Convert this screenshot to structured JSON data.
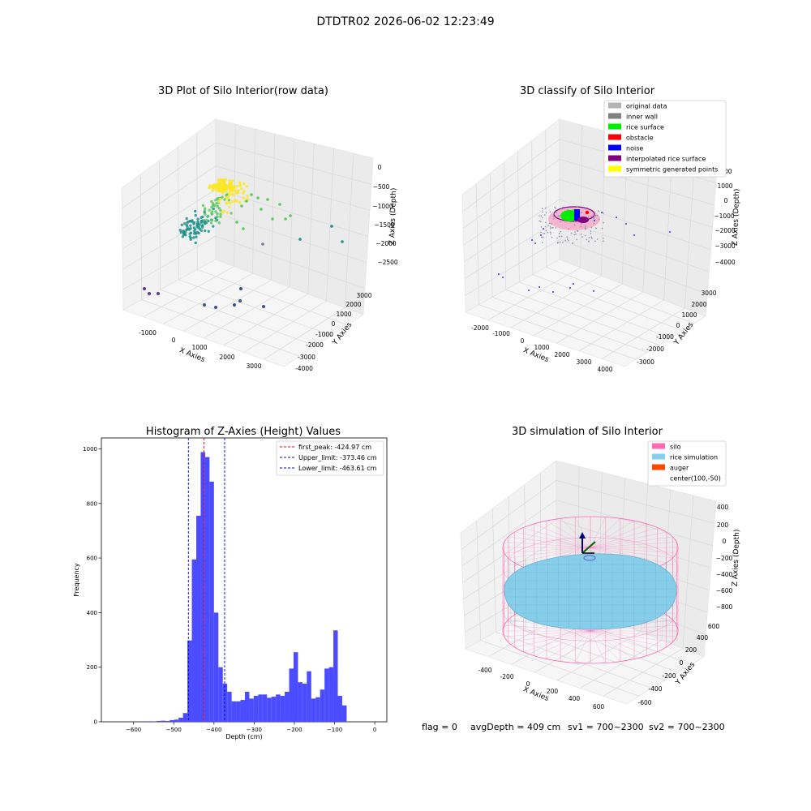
{
  "page_title": "DTDTR02 2026-06-02 12:23:49",
  "footer": {
    "flag": "flag = 0",
    "avg_depth": "avgDepth = 409 cm",
    "sv1": "sv1 = 700~2300",
    "sv2": "sv2 = 700~2300"
  },
  "chart_data": [
    {
      "id": "raw",
      "type": "scatter",
      "title": "3D Plot of Silo Interior(row data)",
      "xlabel": "X Axies",
      "ylabel": "Y Axies",
      "zlabel": "Z Axies (Depth)",
      "xlim": [
        -1600,
        3500
      ],
      "ylim": [
        -4200,
        3200
      ],
      "zlim": [
        -2900,
        100
      ],
      "x_ticks": [
        "-1000",
        "0",
        "1000",
        "2000",
        "3000"
      ],
      "y_ticks": [
        "-4000",
        "-3000",
        "-2000",
        "-1000",
        "0",
        "1000",
        "2000",
        "3000"
      ],
      "z_ticks": [
        "0",
        "−500",
        "−1000",
        "−1500",
        "−2000",
        "−2500"
      ],
      "colormap": [
        "#440154",
        "#3b528b",
        "#21918c",
        "#5ec962",
        "#fde725"
      ],
      "points_sampled": [
        {
          "x": -1250,
          "y": 2100,
          "z": -2800
        },
        {
          "x": -1150,
          "y": 2000,
          "z": -2800
        },
        {
          "x": -1000,
          "y": 2000,
          "z": -2800
        },
        {
          "x": 1500,
          "y": 2100,
          "z": -2750
        },
        {
          "x": 1800,
          "y": 1900,
          "z": -2750
        },
        {
          "x": 2250,
          "y": 1500,
          "z": -2700
        },
        {
          "x": 2250,
          "y": 1100,
          "z": -2600
        },
        {
          "x": 2900,
          "y": 700,
          "z": -2750
        },
        {
          "x": 3000,
          "y": -2200,
          "z": -1800
        },
        {
          "x": 3000,
          "y": -3500,
          "z": -2000
        },
        {
          "x": 2600,
          "y": -3000,
          "z": -2500
        },
        {
          "x": 2100,
          "y": -800,
          "z": -2100
        }
      ]
    },
    {
      "id": "classify",
      "type": "scatter",
      "title": "3D classify of Silo Interior",
      "xlabel": "X Axies",
      "ylabel": "Y Axies",
      "zlabel": "Z Axies (Depth)",
      "xlim": [
        -2400,
        4500
      ],
      "ylim": [
        -3500,
        3500
      ],
      "zlim": [
        -4500,
        2200
      ],
      "x_ticks": [
        "-2000",
        "-1000",
        "0",
        "1000",
        "2000",
        "3000",
        "4000"
      ],
      "y_ticks": [
        "-3000",
        "-2000",
        "-1000",
        "0",
        "1000",
        "2000",
        "3000"
      ],
      "z_ticks": [
        "2000",
        "1000",
        "0",
        "−1000",
        "−2000",
        "−3000",
        "−4000"
      ],
      "legend_position": "upper-right",
      "legend": [
        {
          "label": "original data",
          "color": "#b3b3b3"
        },
        {
          "label": "inner wall",
          "color": "#808080"
        },
        {
          "label": "rice surface",
          "color": "#00ee00"
        },
        {
          "label": "obstacle",
          "color": "#ff0000"
        },
        {
          "label": "noise",
          "color": "#0000ff"
        },
        {
          "label": "interpolated rice surface",
          "color": "#800080"
        },
        {
          "label": "symmetric generated points",
          "color": "#ffff00"
        }
      ]
    },
    {
      "id": "histogram",
      "type": "bar",
      "title": "Histogram of Z-Axies (Height) Values",
      "xlabel": "Depth (cm)",
      "ylabel": "Frequency",
      "xlim": [
        -680,
        30
      ],
      "ylim": [
        0,
        1040
      ],
      "x_ticks": [
        -600,
        -500,
        -400,
        -300,
        -200,
        -100,
        0
      ],
      "y_ticks": [
        0,
        200,
        400,
        600,
        800,
        1000
      ],
      "bar_color": "#4b4bff",
      "bin_width": 11,
      "bins_start": [
        -565,
        -554,
        -543,
        -532,
        -521,
        -510,
        -499,
        -488,
        -477,
        -466,
        -455,
        -444,
        -433,
        -422,
        -411,
        -400,
        -389,
        -378,
        -367,
        -356,
        -345,
        -334,
        -323,
        -312,
        -301,
        -290,
        -279,
        -268,
        -257,
        -246,
        -235,
        -224,
        -213,
        -202,
        -191,
        -180,
        -169,
        -158,
        -147,
        -136,
        -125,
        -114,
        -103,
        -92,
        -81,
        -70,
        -59,
        -48,
        -37,
        -26,
        -15,
        -4
      ],
      "values": [
        2,
        1,
        3,
        4,
        3,
        6,
        8,
        15,
        32,
        298,
        595,
        755,
        988,
        970,
        880,
        400,
        200,
        140,
        110,
        75,
        75,
        80,
        110,
        85,
        95,
        100,
        100,
        88,
        92,
        100,
        95,
        110,
        195,
        255,
        145,
        140,
        185,
        85,
        90,
        118,
        195,
        200,
        335,
        95,
        60,
        0,
        0,
        0,
        0,
        0,
        0,
        0
      ],
      "lines": [
        {
          "label": "first_peak: -424.97 cm",
          "x": -424.97,
          "color": "#ff0000"
        },
        {
          "label": "Upper_limit: -373.46 cm",
          "x": -373.46,
          "color": "#0000cc"
        },
        {
          "label": "Lower_limit: -463.61 cm",
          "x": -463.61,
          "color": "#0000cc"
        }
      ],
      "legend_position": "upper-right"
    },
    {
      "id": "simulation",
      "type": "surface",
      "title": "3D simulation of Silo Interior",
      "xlabel": "X Axies",
      "ylabel": "Y Axies",
      "zlabel": "Z Axies (Depth)",
      "xlim": [
        -500,
        700
      ],
      "ylim": [
        -700,
        700
      ],
      "zlim": [
        -900,
        450
      ],
      "x_ticks": [
        "-400",
        "-200",
        "0",
        "200",
        "400",
        "600"
      ],
      "y_ticks": [
        "-600",
        "-400",
        "-200",
        "0",
        "200",
        "400",
        "600"
      ],
      "z_ticks": [
        "400",
        "200",
        "0",
        "−200",
        "−400",
        "−600",
        "−800"
      ],
      "legend_position": "upper-right",
      "legend": [
        {
          "label": "silo",
          "color": "#ff69b4"
        },
        {
          "label": "rice simulation",
          "color": "#87ceeb"
        },
        {
          "label": "auger",
          "color": "#ff4500"
        },
        {
          "label": "center(100,-50)",
          "color": ""
        }
      ]
    }
  ]
}
